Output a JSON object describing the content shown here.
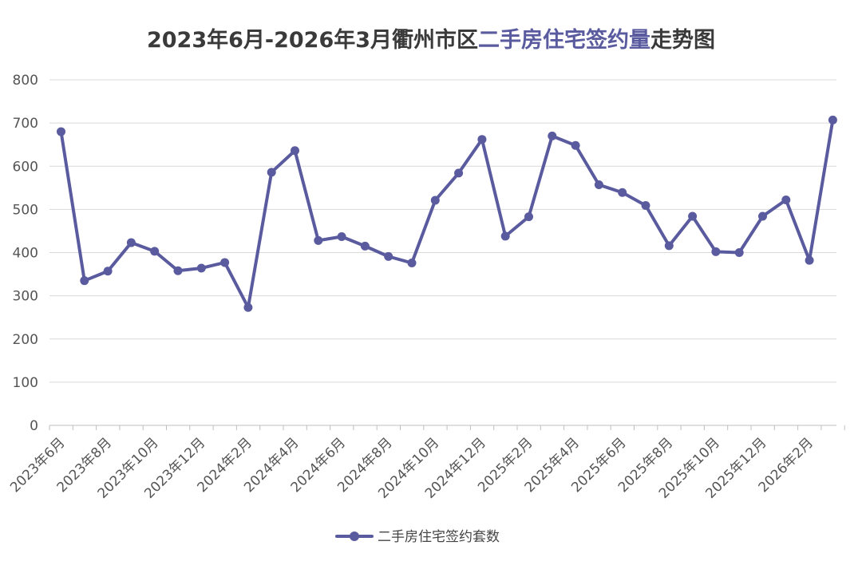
{
  "title": {
    "prefix": "2023年6月-2026年3月衢州市区",
    "highlight": "二手房住宅签约量",
    "suffix": "走势图"
  },
  "colors": {
    "series": "#5a5b9f",
    "grid": "#d9d9d9",
    "text": "#555555"
  },
  "chart_data": {
    "type": "line",
    "x": [
      "2023年6月",
      "2023年7月",
      "2023年8月",
      "2023年9月",
      "2023年10月",
      "2023年11月",
      "2023年12月",
      "2024年1月",
      "2024年2月",
      "2024年3月",
      "2024年4月",
      "2024年5月",
      "2024年6月",
      "2024年7月",
      "2024年8月",
      "2024年9月",
      "2024年10月",
      "2024年11月",
      "2024年12月",
      "2025年1月",
      "2025年2月",
      "2025年3月",
      "2025年4月",
      "2025年5月",
      "2025年6月",
      "2025年7月",
      "2025年8月",
      "2025年9月",
      "2025年10月",
      "2025年11月",
      "2025年12月",
      "2026年1月",
      "2026年2月",
      "2026年3月"
    ],
    "tick_labels": [
      "2023年6月",
      "2023年8月",
      "2023年10月",
      "2023年12月",
      "2024年2月",
      "2024年4月",
      "2024年6月",
      "2024年8月",
      "2024年10月",
      "2024年12月",
      "2025年2月",
      "2025年4月",
      "2025年6月",
      "2025年8月",
      "2025年10月",
      "2025年12月",
      "2026年2月"
    ],
    "series": [
      {
        "name": "二手房住宅签约套数",
        "values": [
          680,
          335,
          357,
          423,
          403,
          358,
          364,
          377,
          273,
          586,
          636,
          428,
          437,
          415,
          391,
          376,
          521,
          584,
          662,
          438,
          483,
          670,
          648,
          557,
          539,
          509,
          416,
          484,
          402,
          400,
          484,
          522,
          382,
          707
        ]
      }
    ],
    "yticks": [
      0,
      100,
      200,
      300,
      400,
      500,
      600,
      700,
      800
    ],
    "ylim": [
      0,
      800
    ],
    "grid": true,
    "legend_position": "bottom"
  }
}
